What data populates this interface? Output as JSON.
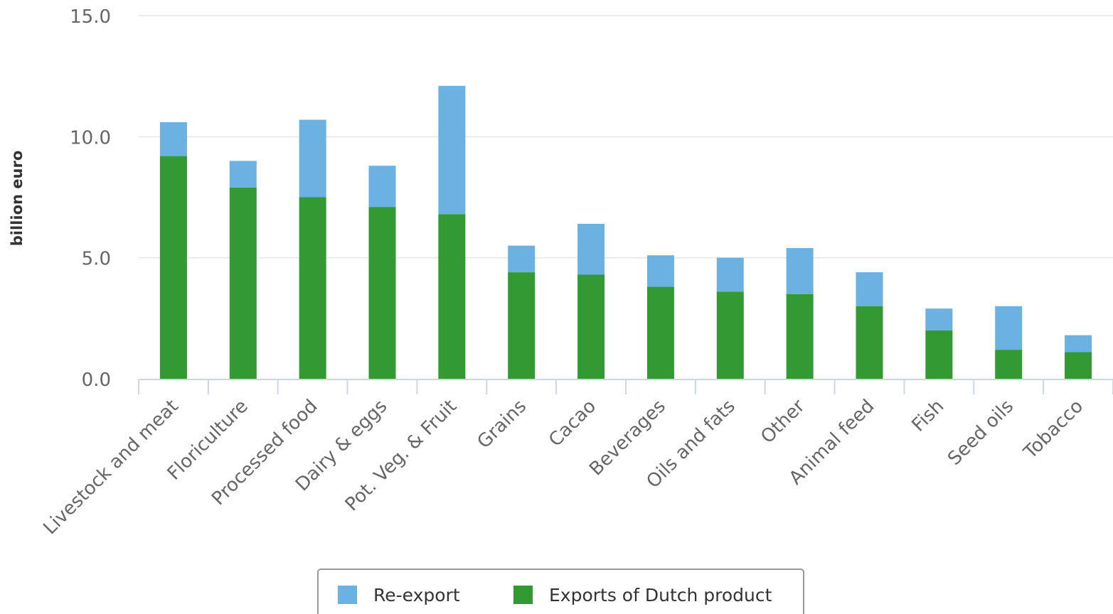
{
  "chart_data": {
    "type": "bar",
    "stacked": true,
    "title": "",
    "xlabel": "",
    "ylabel": "billion euro",
    "ylim": [
      0,
      15
    ],
    "yticks": [
      "0.0",
      "5.0",
      "10.0",
      "15.0"
    ],
    "ytick_values": [
      0,
      5,
      10,
      15
    ],
    "grid": true,
    "legend": "bottom-center",
    "categories": [
      "Livestock and meat",
      "Floriculture",
      "Processed food",
      "Dairy & eggs",
      "Pot. Veg. & Fruit",
      "Grains",
      "Cacao",
      "Beverages",
      "Oils and fats",
      "Other",
      "Animal feed",
      "Fish",
      "Seed oils",
      "Tobacco"
    ],
    "series": [
      {
        "name": "Exports of Dutch product",
        "color": "#339933",
        "values": [
          9.2,
          7.9,
          7.5,
          7.1,
          6.8,
          4.4,
          4.3,
          3.8,
          3.6,
          3.5,
          3.0,
          2.0,
          1.2,
          1.1
        ]
      },
      {
        "name": "Re-export",
        "color": "#6bb1e2",
        "values": [
          1.4,
          1.1,
          3.2,
          1.7,
          5.3,
          1.1,
          2.1,
          1.3,
          1.4,
          1.9,
          1.4,
          0.9,
          1.8,
          0.7
        ]
      }
    ],
    "legend_order": [
      "Re-export",
      "Exports of Dutch product"
    ]
  }
}
